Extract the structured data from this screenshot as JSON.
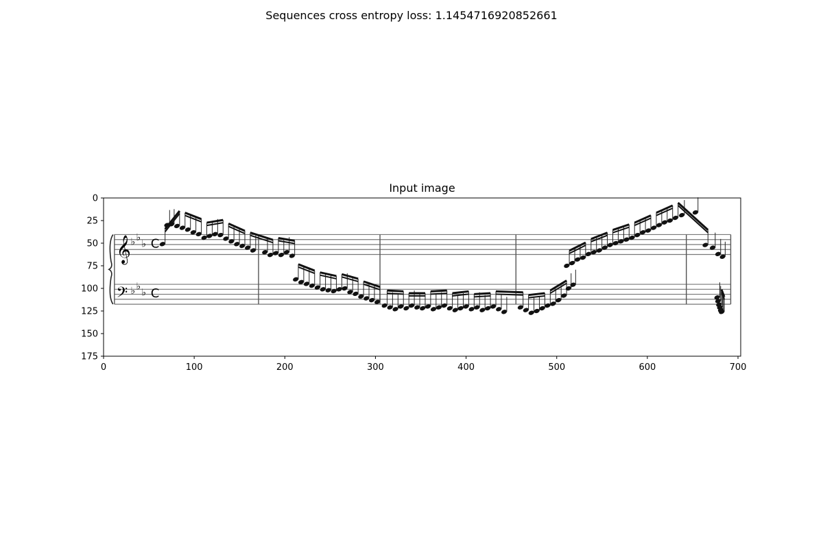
{
  "figure": {
    "suptitle": "Sequences cross entropy loss: 1.1454716920852661"
  },
  "chart_data": {
    "type": "image",
    "title": "Input image",
    "xlabel": "",
    "ylabel": "",
    "xlim": [
      0,
      703
    ],
    "ylim": [
      175,
      0
    ],
    "y_inverted": true,
    "xticks": [
      0,
      100,
      200,
      300,
      400,
      500,
      600,
      700
    ],
    "yticks": [
      0,
      25,
      50,
      75,
      100,
      125,
      150,
      175
    ],
    "grid": false,
    "image_content": "grand staff piano score excerpt (treble and bass clef, three flats, common time)",
    "staff": {
      "left": 12,
      "right": 692,
      "treble_lines_y": [
        40.5,
        46,
        51.5,
        57,
        62.5
      ],
      "bass_lines_y": [
        95.5,
        101,
        106.5,
        112,
        117.5
      ],
      "barlines_x": [
        171,
        305,
        455,
        643,
        692
      ]
    },
    "notes": {
      "treble": [
        [
          65,
          51
        ],
        [
          70,
          30
        ],
        [
          75,
          29
        ],
        [
          81,
          31
        ],
        [
          87,
          33
        ],
        [
          93,
          35
        ],
        [
          99,
          38
        ],
        [
          105,
          40
        ],
        [
          111,
          44
        ],
        [
          117,
          42
        ],
        [
          123,
          40
        ],
        [
          129,
          41
        ],
        [
          135,
          45
        ],
        [
          141,
          48
        ],
        [
          147,
          51
        ],
        [
          153,
          53
        ],
        [
          159,
          55
        ],
        [
          165,
          58
        ],
        [
          178,
          60
        ],
        [
          184,
          63
        ],
        [
          190,
          61
        ],
        [
          196,
          63
        ],
        [
          202,
          60
        ],
        [
          208,
          64
        ],
        [
          511,
          75
        ],
        [
          517,
          72
        ],
        [
          523,
          68
        ],
        [
          529,
          66
        ],
        [
          535,
          62
        ],
        [
          541,
          60
        ],
        [
          547,
          58
        ],
        [
          553,
          55
        ],
        [
          559,
          52
        ],
        [
          565,
          50
        ],
        [
          571,
          48
        ],
        [
          577,
          46
        ],
        [
          583,
          44
        ],
        [
          589,
          41
        ],
        [
          595,
          38
        ],
        [
          601,
          36
        ],
        [
          607,
          33
        ],
        [
          613,
          30
        ],
        [
          619,
          27
        ],
        [
          625,
          25
        ],
        [
          631,
          22
        ],
        [
          638,
          19
        ],
        [
          653,
          16
        ],
        [
          664,
          52
        ],
        [
          672,
          55
        ],
        [
          678,
          62
        ],
        [
          683,
          65
        ]
      ],
      "bass": [
        [
          212,
          90
        ],
        [
          218,
          93
        ],
        [
          224,
          95
        ],
        [
          230,
          97
        ],
        [
          236,
          99
        ],
        [
          242,
          101
        ],
        [
          248,
          102
        ],
        [
          254,
          103
        ],
        [
          260,
          101
        ],
        [
          266,
          100
        ],
        [
          272,
          104
        ],
        [
          278,
          106
        ],
        [
          284,
          109
        ],
        [
          290,
          111
        ],
        [
          296,
          113
        ],
        [
          302,
          115
        ],
        [
          310,
          119
        ],
        [
          316,
          121
        ],
        [
          322,
          123
        ],
        [
          328,
          120
        ],
        [
          334,
          122
        ],
        [
          340,
          119
        ],
        [
          346,
          121
        ],
        [
          352,
          122
        ],
        [
          358,
          120
        ],
        [
          364,
          123
        ],
        [
          370,
          121
        ],
        [
          376,
          119
        ],
        [
          382,
          122
        ],
        [
          388,
          124
        ],
        [
          394,
          122
        ],
        [
          400,
          120
        ],
        [
          406,
          123
        ],
        [
          412,
          121
        ],
        [
          418,
          124
        ],
        [
          424,
          122
        ],
        [
          430,
          120
        ],
        [
          436,
          123
        ],
        [
          442,
          126
        ],
        [
          460,
          121
        ],
        [
          466,
          124
        ],
        [
          472,
          127
        ],
        [
          478,
          125
        ],
        [
          484,
          122
        ],
        [
          490,
          119
        ],
        [
          496,
          117
        ],
        [
          502,
          113
        ],
        [
          508,
          108
        ],
        [
          513,
          100
        ],
        [
          518,
          96
        ],
        [
          677,
          110
        ],
        [
          678,
          114
        ],
        [
          679,
          118
        ],
        [
          680,
          121
        ],
        [
          681,
          124
        ],
        [
          682,
          126
        ]
      ]
    }
  }
}
